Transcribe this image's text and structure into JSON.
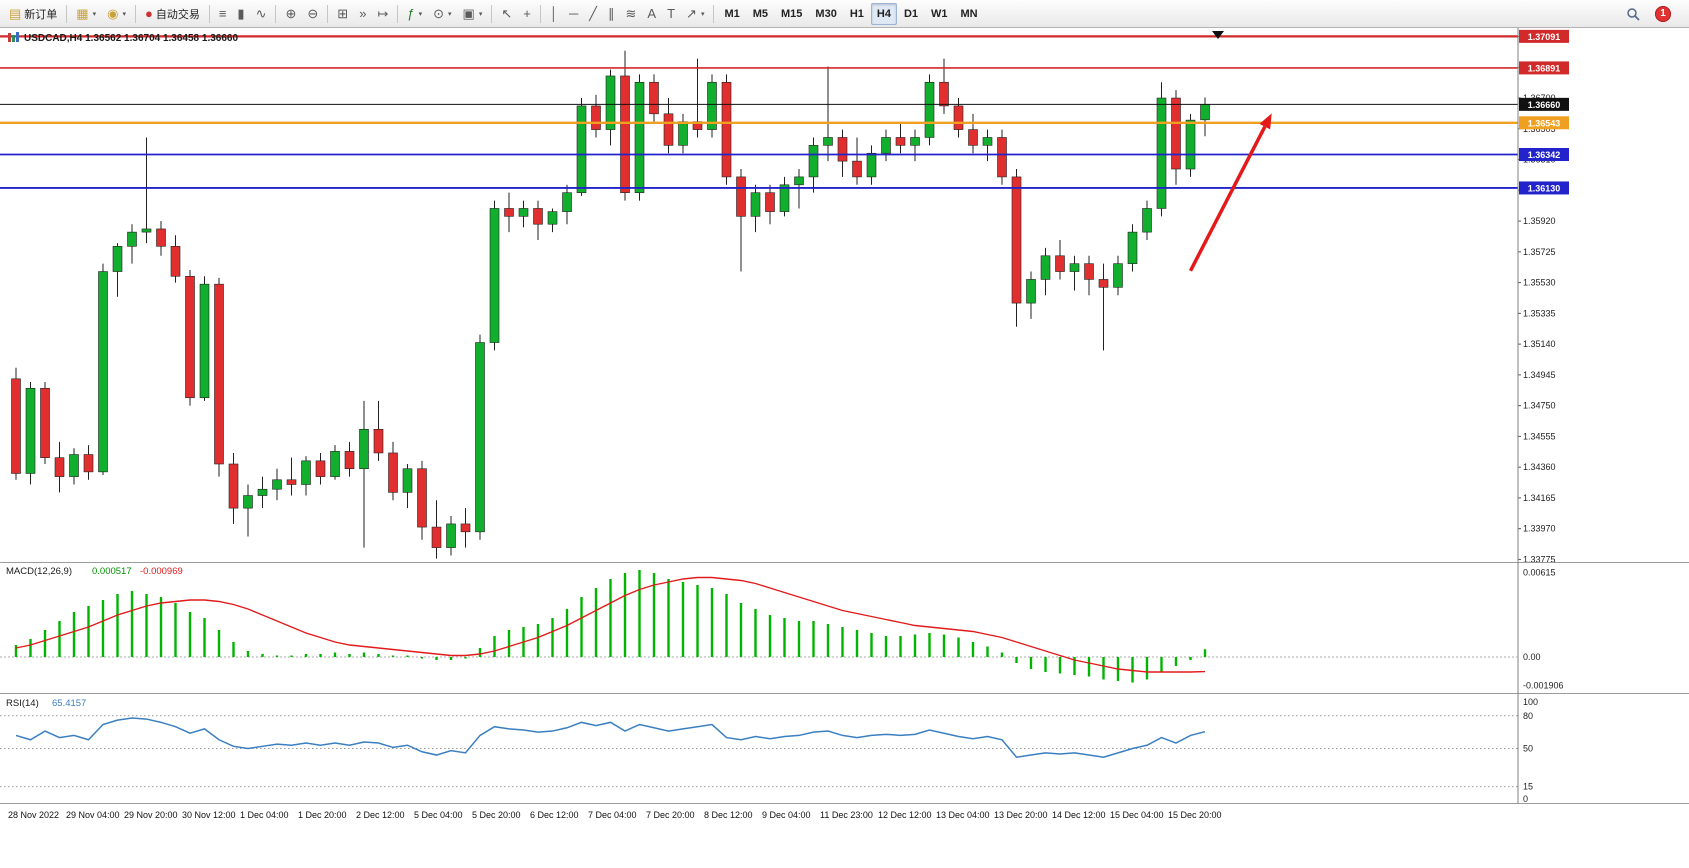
{
  "toolbar": {
    "notification_badge": "1",
    "search_icon": "magnifier",
    "groups": [
      {
        "name": "order-group",
        "items": [
          {
            "name": "new-order-button",
            "glyph": "▤",
            "color": "#c9a23a",
            "label": "新订单"
          }
        ]
      },
      {
        "name": "window-profile-group",
        "items": [
          {
            "name": "new-chart-button",
            "glyph": "▦",
            "color": "#c9a23a",
            "caret": true
          },
          {
            "name": "profiles-button",
            "glyph": "◉",
            "color": "#c9a23a",
            "caret": true
          }
        ]
      },
      {
        "name": "autotrading-group",
        "items": [
          {
            "name": "autotrading-button",
            "glyph": "●",
            "color": "#cc3434",
            "label": "自动交易"
          }
        ]
      },
      {
        "name": "chart-mode-group",
        "items": [
          {
            "name": "bar-chart-button",
            "glyph": "≡"
          },
          {
            "name": "candlestick-chart-button",
            "glyph": "▮"
          },
          {
            "name": "line-chart-button",
            "glyph": "∿"
          }
        ]
      },
      {
        "name": "zoom-group",
        "items": [
          {
            "name": "zoom-in-button",
            "glyph": "⊕"
          },
          {
            "name": "zoom-out-button",
            "glyph": "⊖"
          }
        ]
      },
      {
        "name": "scroll-group",
        "items": [
          {
            "name": "tile-windows-button",
            "glyph": "⊞"
          },
          {
            "name": "auto-scroll-button",
            "glyph": "»"
          },
          {
            "name": "chart-shift-button",
            "glyph": "↦"
          }
        ]
      },
      {
        "name": "insert-group",
        "items": [
          {
            "name": "indicators-button",
            "glyph": "ƒ",
            "color": "#2a7a2a",
            "caret": true
          },
          {
            "name": "period-button",
            "glyph": "⊙",
            "caret": true
          },
          {
            "name": "template-button",
            "glyph": "▣",
            "caret": true
          }
        ]
      },
      {
        "name": "pointer-group",
        "items": [
          {
            "name": "cursor-button",
            "glyph": "↖"
          },
          {
            "name": "crosshair-button",
            "glyph": "+"
          }
        ]
      },
      {
        "name": "draw-group",
        "items": [
          {
            "name": "vertical-line-button",
            "glyph": "│"
          },
          {
            "name": "horizontal-line-button",
            "glyph": "─"
          },
          {
            "name": "trendline-button",
            "glyph": "╱"
          },
          {
            "name": "equidistant-channel-button",
            "glyph": "∥"
          },
          {
            "name": "fibonac​ci-button",
            "glyph": "≋"
          },
          {
            "name": "text-button",
            "glyph": "A"
          },
          {
            "name": "text-label-button",
            "glyph": "T"
          },
          {
            "name": "arrows-button",
            "glyph": "↗",
            "caret": true
          }
        ]
      },
      {
        "name": "timeframe-group",
        "items": [
          {
            "name": "timeframe-m1-button",
            "kind": "tf",
            "label": "M1"
          },
          {
            "name": "timeframe-m5-button",
            "kind": "tf",
            "label": "M5"
          },
          {
            "name": "timeframe-m15-button",
            "kind": "tf",
            "label": "M15"
          },
          {
            "name": "timeframe-m30-button",
            "kind": "tf",
            "label": "M30"
          },
          {
            "name": "timeframe-h1-button",
            "kind": "tf",
            "label": "H1"
          },
          {
            "name": "timeframe-h4-button",
            "kind": "tf",
            "label": "H4",
            "active": true
          },
          {
            "name": "timeframe-d1-button",
            "kind": "tf",
            "label": "D1"
          },
          {
            "name": "timeframe-w1-button",
            "kind": "tf",
            "label": "W1"
          },
          {
            "name": "timeframe-mn-button",
            "kind": "tf",
            "label": "MN"
          }
        ]
      }
    ]
  },
  "chart_data": [
    {
      "type": "candlestick",
      "symbol": "USDCAD",
      "timeframe": "H4",
      "title_text": "USDCAD,H4",
      "ohlc_text": "1.36562 1.36704 1.36458 1.36660",
      "up_color": "#12ae2e",
      "down_color": "#e12f2f",
      "wick_color": "#222222",
      "ylim": [
        1.33765,
        1.37125
      ],
      "price_axis_ticks": [
        "1.37090",
        "1.36895",
        "1.36700",
        "1.36505",
        "1.36310",
        "1.36115",
        "1.35920",
        "1.35725",
        "1.35530",
        "1.35335",
        "1.35140",
        "1.34945",
        "1.34750",
        "1.34555",
        "1.34360",
        "1.34165",
        "1.33970",
        "1.33775"
      ],
      "price_lines": [
        {
          "label": "1.37091",
          "price": 1.37091,
          "color": "#d02a2a",
          "width": 2.2,
          "kind": "resistance-line-upper"
        },
        {
          "label": "1.36891",
          "price": 1.36891,
          "color": "#d02a2a",
          "width": 1.6,
          "kind": "resistance-line"
        },
        {
          "label": "1.36660",
          "price": 1.3666,
          "color": "#111111",
          "width": 1,
          "kind": "current-price-line"
        },
        {
          "label": "1.36543",
          "price": 1.36543,
          "color": "#efa021",
          "width": 2.4,
          "kind": "pivot-line"
        },
        {
          "label": "1.36342",
          "price": 1.36342,
          "color": "#2323cc",
          "width": 1.8,
          "kind": "support-line-upper"
        },
        {
          "label": "1.36130",
          "price": 1.3613,
          "color": "#2323cc",
          "width": 1.8,
          "kind": "support-line-lower"
        }
      ],
      "arrow_annotation": {
        "from_index": 81,
        "from_price": 1.35605,
        "to_index": 86.6,
        "to_price": 1.36603,
        "color": "#e41a1a"
      },
      "x_labels": [
        "28 Nov 2022",
        "29 Nov 04:00",
        "29 Nov 20:00",
        "30 Nov 12:00",
        "1 Dec 04:00",
        "1 Dec 20:00",
        "2 Dec 12:00",
        "5 Dec 04:00",
        "5 Dec 20:00",
        "6 Dec 12:00",
        "7 Dec 04:00",
        "7 Dec 20:00",
        "8 Dec 12:00",
        "9 Dec 04:00",
        "11 Dec 23:00",
        "12 Dec 12:00",
        "13 Dec 04:00",
        "13 Dec 20:00",
        "14 Dec 12:00",
        "15 Dec 04:00",
        "15 Dec 20:00"
      ],
      "x_label_step": 4,
      "candles": [
        [
          1.3492,
          1.3499,
          1.3428,
          1.3432
        ],
        [
          1.3432,
          1.349,
          1.3425,
          1.3486
        ],
        [
          1.3486,
          1.349,
          1.3438,
          1.3442
        ],
        [
          1.3442,
          1.3452,
          1.342,
          1.343
        ],
        [
          1.343,
          1.3448,
          1.3425,
          1.3444
        ],
        [
          1.3444,
          1.345,
          1.3428,
          1.3433
        ],
        [
          1.3433,
          1.3565,
          1.3431,
          1.356
        ],
        [
          1.356,
          1.3578,
          1.3544,
          1.3576
        ],
        [
          1.3576,
          1.359,
          1.3565,
          1.3585
        ],
        [
          1.3585,
          1.3645,
          1.3578,
          1.3587
        ],
        [
          1.3587,
          1.3592,
          1.357,
          1.3576
        ],
        [
          1.3576,
          1.3583,
          1.3553,
          1.3557
        ],
        [
          1.3557,
          1.3561,
          1.3475,
          1.348
        ],
        [
          1.348,
          1.3557,
          1.3478,
          1.3552
        ],
        [
          1.3552,
          1.3556,
          1.343,
          1.3438
        ],
        [
          1.3438,
          1.3445,
          1.34,
          1.341
        ],
        [
          1.341,
          1.3425,
          1.3392,
          1.3418
        ],
        [
          1.3418,
          1.343,
          1.341,
          1.3422
        ],
        [
          1.3422,
          1.3435,
          1.3415,
          1.3428
        ],
        [
          1.3428,
          1.3442,
          1.3418,
          1.3425
        ],
        [
          1.3425,
          1.3443,
          1.3418,
          1.344
        ],
        [
          1.344,
          1.3445,
          1.3425,
          1.343
        ],
        [
          1.343,
          1.345,
          1.3428,
          1.3446
        ],
        [
          1.3446,
          1.3452,
          1.343,
          1.3435
        ],
        [
          1.3435,
          1.3478,
          1.3385,
          1.346
        ],
        [
          1.346,
          1.3478,
          1.344,
          1.3445
        ],
        [
          1.3445,
          1.3452,
          1.3415,
          1.342
        ],
        [
          1.342,
          1.3438,
          1.341,
          1.3435
        ],
        [
          1.3435,
          1.344,
          1.339,
          1.3398
        ],
        [
          1.3398,
          1.3415,
          1.3378,
          1.3385
        ],
        [
          1.3385,
          1.3405,
          1.338,
          1.34
        ],
        [
          1.34,
          1.341,
          1.3385,
          1.3395
        ],
        [
          1.3395,
          1.352,
          1.339,
          1.3515
        ],
        [
          1.3515,
          1.3605,
          1.351,
          1.36
        ],
        [
          1.36,
          1.361,
          1.3585,
          1.3595
        ],
        [
          1.3595,
          1.3605,
          1.3588,
          1.36
        ],
        [
          1.36,
          1.3605,
          1.358,
          1.359
        ],
        [
          1.359,
          1.36,
          1.3585,
          1.3598
        ],
        [
          1.3598,
          1.3615,
          1.359,
          1.361
        ],
        [
          1.361,
          1.367,
          1.3608,
          1.3665
        ],
        [
          1.3665,
          1.3672,
          1.3645,
          1.365
        ],
        [
          1.365,
          1.3688,
          1.364,
          1.3684
        ],
        [
          1.3684,
          1.37,
          1.3605,
          1.361
        ],
        [
          1.361,
          1.3685,
          1.3605,
          1.368
        ],
        [
          1.368,
          1.3685,
          1.3655,
          1.366
        ],
        [
          1.366,
          1.367,
          1.3635,
          1.364
        ],
        [
          1.364,
          1.366,
          1.3635,
          1.3655
        ],
        [
          1.3655,
          1.3695,
          1.3645,
          1.365
        ],
        [
          1.365,
          1.3685,
          1.3645,
          1.368
        ],
        [
          1.368,
          1.3685,
          1.3615,
          1.362
        ],
        [
          1.362,
          1.3625,
          1.356,
          1.3595
        ],
        [
          1.3595,
          1.3615,
          1.3585,
          1.361
        ],
        [
          1.361,
          1.3615,
          1.359,
          1.3598
        ],
        [
          1.3598,
          1.362,
          1.3595,
          1.3615
        ],
        [
          1.3615,
          1.3625,
          1.36,
          1.362
        ],
        [
          1.362,
          1.3645,
          1.361,
          1.364
        ],
        [
          1.364,
          1.369,
          1.363,
          1.3645
        ],
        [
          1.3645,
          1.365,
          1.362,
          1.363
        ],
        [
          1.363,
          1.3645,
          1.3615,
          1.362
        ],
        [
          1.362,
          1.364,
          1.3615,
          1.3635
        ],
        [
          1.3635,
          1.365,
          1.363,
          1.3645
        ],
        [
          1.3645,
          1.3655,
          1.3635,
          1.364
        ],
        [
          1.364,
          1.365,
          1.363,
          1.3645
        ],
        [
          1.3645,
          1.3685,
          1.364,
          1.368
        ],
        [
          1.368,
          1.3695,
          1.366,
          1.3665
        ],
        [
          1.3665,
          1.367,
          1.3645,
          1.365
        ],
        [
          1.365,
          1.366,
          1.3635,
          1.364
        ],
        [
          1.364,
          1.365,
          1.363,
          1.3645
        ],
        [
          1.3645,
          1.365,
          1.3615,
          1.362
        ],
        [
          1.362,
          1.3625,
          1.3525,
          1.354
        ],
        [
          1.354,
          1.356,
          1.353,
          1.3555
        ],
        [
          1.3555,
          1.3575,
          1.3545,
          1.357
        ],
        [
          1.357,
          1.358,
          1.3555,
          1.356
        ],
        [
          1.356,
          1.357,
          1.3548,
          1.3565
        ],
        [
          1.3565,
          1.357,
          1.3545,
          1.3555
        ],
        [
          1.3555,
          1.3565,
          1.351,
          1.355
        ],
        [
          1.355,
          1.357,
          1.3545,
          1.3565
        ],
        [
          1.3565,
          1.359,
          1.356,
          1.3585
        ],
        [
          1.3585,
          1.3605,
          1.358,
          1.36
        ],
        [
          1.36,
          1.368,
          1.3595,
          1.367
        ],
        [
          1.367,
          1.3675,
          1.3615,
          1.3625
        ],
        [
          1.3625,
          1.366,
          1.362,
          1.3656
        ],
        [
          1.36562,
          1.36704,
          1.36458,
          1.3666
        ]
      ]
    },
    {
      "type": "bar",
      "name": "MACD(12,26,9)",
      "current_main": "0.000517",
      "current_signal": "-0.000969",
      "histogram_color": "#00b400",
      "signal_color": "#e11b1b",
      "scale_labels": [
        "0.00615",
        "0.00",
        "-0.001906"
      ],
      "histogram": [
        0.0008,
        0.0012,
        0.0018,
        0.0024,
        0.003,
        0.0034,
        0.0038,
        0.0042,
        0.0044,
        0.0042,
        0.004,
        0.0036,
        0.003,
        0.0026,
        0.0018,
        0.001,
        0.0004,
        0.0002,
        0.0001,
        0.0001,
        0.0002,
        0.0002,
        0.0003,
        0.0002,
        0.0003,
        0.0002,
        0.0001,
        0.0001,
        -0.0001,
        -0.0002,
        -0.0002,
        -0.0001,
        0.0006,
        0.0014,
        0.0018,
        0.002,
        0.0022,
        0.0026,
        0.0032,
        0.004,
        0.0046,
        0.0052,
        0.0056,
        0.0058,
        0.0056,
        0.0052,
        0.005,
        0.0048,
        0.0046,
        0.0042,
        0.0036,
        0.0032,
        0.0028,
        0.0026,
        0.0024,
        0.0024,
        0.0022,
        0.002,
        0.0018,
        0.0016,
        0.0014,
        0.0014,
        0.0015,
        0.0016,
        0.0015,
        0.0013,
        0.001,
        0.0007,
        0.0003,
        -0.0004,
        -0.0008,
        -0.001,
        -0.0011,
        -0.0012,
        -0.0013,
        -0.0015,
        -0.0016,
        -0.0017,
        -0.0015,
        -0.001,
        -0.0006,
        -0.0002,
        0.000517
      ],
      "signal": [
        0.0006,
        0.0008,
        0.0011,
        0.0014,
        0.0017,
        0.002,
        0.0024,
        0.0028,
        0.0031,
        0.0034,
        0.0036,
        0.0037,
        0.0038,
        0.0038,
        0.0037,
        0.0035,
        0.0032,
        0.0028,
        0.0024,
        0.002,
        0.0016,
        0.0013,
        0.001,
        0.0008,
        0.0007,
        0.0006,
        0.0005,
        0.0004,
        0.0003,
        0.0002,
        0.0001,
        0.0001,
        0.0002,
        0.0004,
        0.0007,
        0.001,
        0.0013,
        0.0017,
        0.0021,
        0.0026,
        0.0031,
        0.0036,
        0.0041,
        0.0045,
        0.0048,
        0.005,
        0.0052,
        0.0053,
        0.0053,
        0.0052,
        0.0051,
        0.0049,
        0.0046,
        0.0043,
        0.004,
        0.0037,
        0.0034,
        0.0031,
        0.0029,
        0.0027,
        0.0025,
        0.0023,
        0.0021,
        0.002,
        0.0019,
        0.0018,
        0.0017,
        0.0015,
        0.0013,
        0.001,
        0.0007,
        0.0004,
        0.0001,
        -0.0002,
        -0.0004,
        -0.0006,
        -0.0008,
        -0.0009,
        -0.001,
        -0.001,
        -0.001,
        -0.001,
        -0.000969
      ]
    },
    {
      "type": "line",
      "name": "RSI(14)",
      "current_value": "65.4157",
      "line_color": "#3a7fc1",
      "levels": [
        80,
        50,
        15
      ],
      "scale_labels": [
        "100",
        "80",
        "50",
        "15",
        "0"
      ],
      "ylim": [
        0,
        100
      ],
      "values": [
        62,
        58,
        66,
        60,
        62,
        58,
        72,
        76,
        78,
        77,
        74,
        70,
        64,
        68,
        58,
        52,
        50,
        52,
        54,
        53,
        55,
        53,
        55,
        53,
        56,
        55,
        51,
        53,
        47,
        44,
        48,
        46,
        62,
        70,
        68,
        67,
        65,
        66,
        69,
        74,
        71,
        74,
        66,
        72,
        69,
        66,
        68,
        70,
        72,
        60,
        58,
        61,
        59,
        61,
        62,
        65,
        66,
        62,
        60,
        62,
        63,
        62,
        63,
        67,
        64,
        61,
        59,
        61,
        58,
        42,
        44,
        46,
        45,
        46,
        44,
        42,
        46,
        50,
        53,
        60,
        55,
        62,
        65.42
      ]
    }
  ]
}
